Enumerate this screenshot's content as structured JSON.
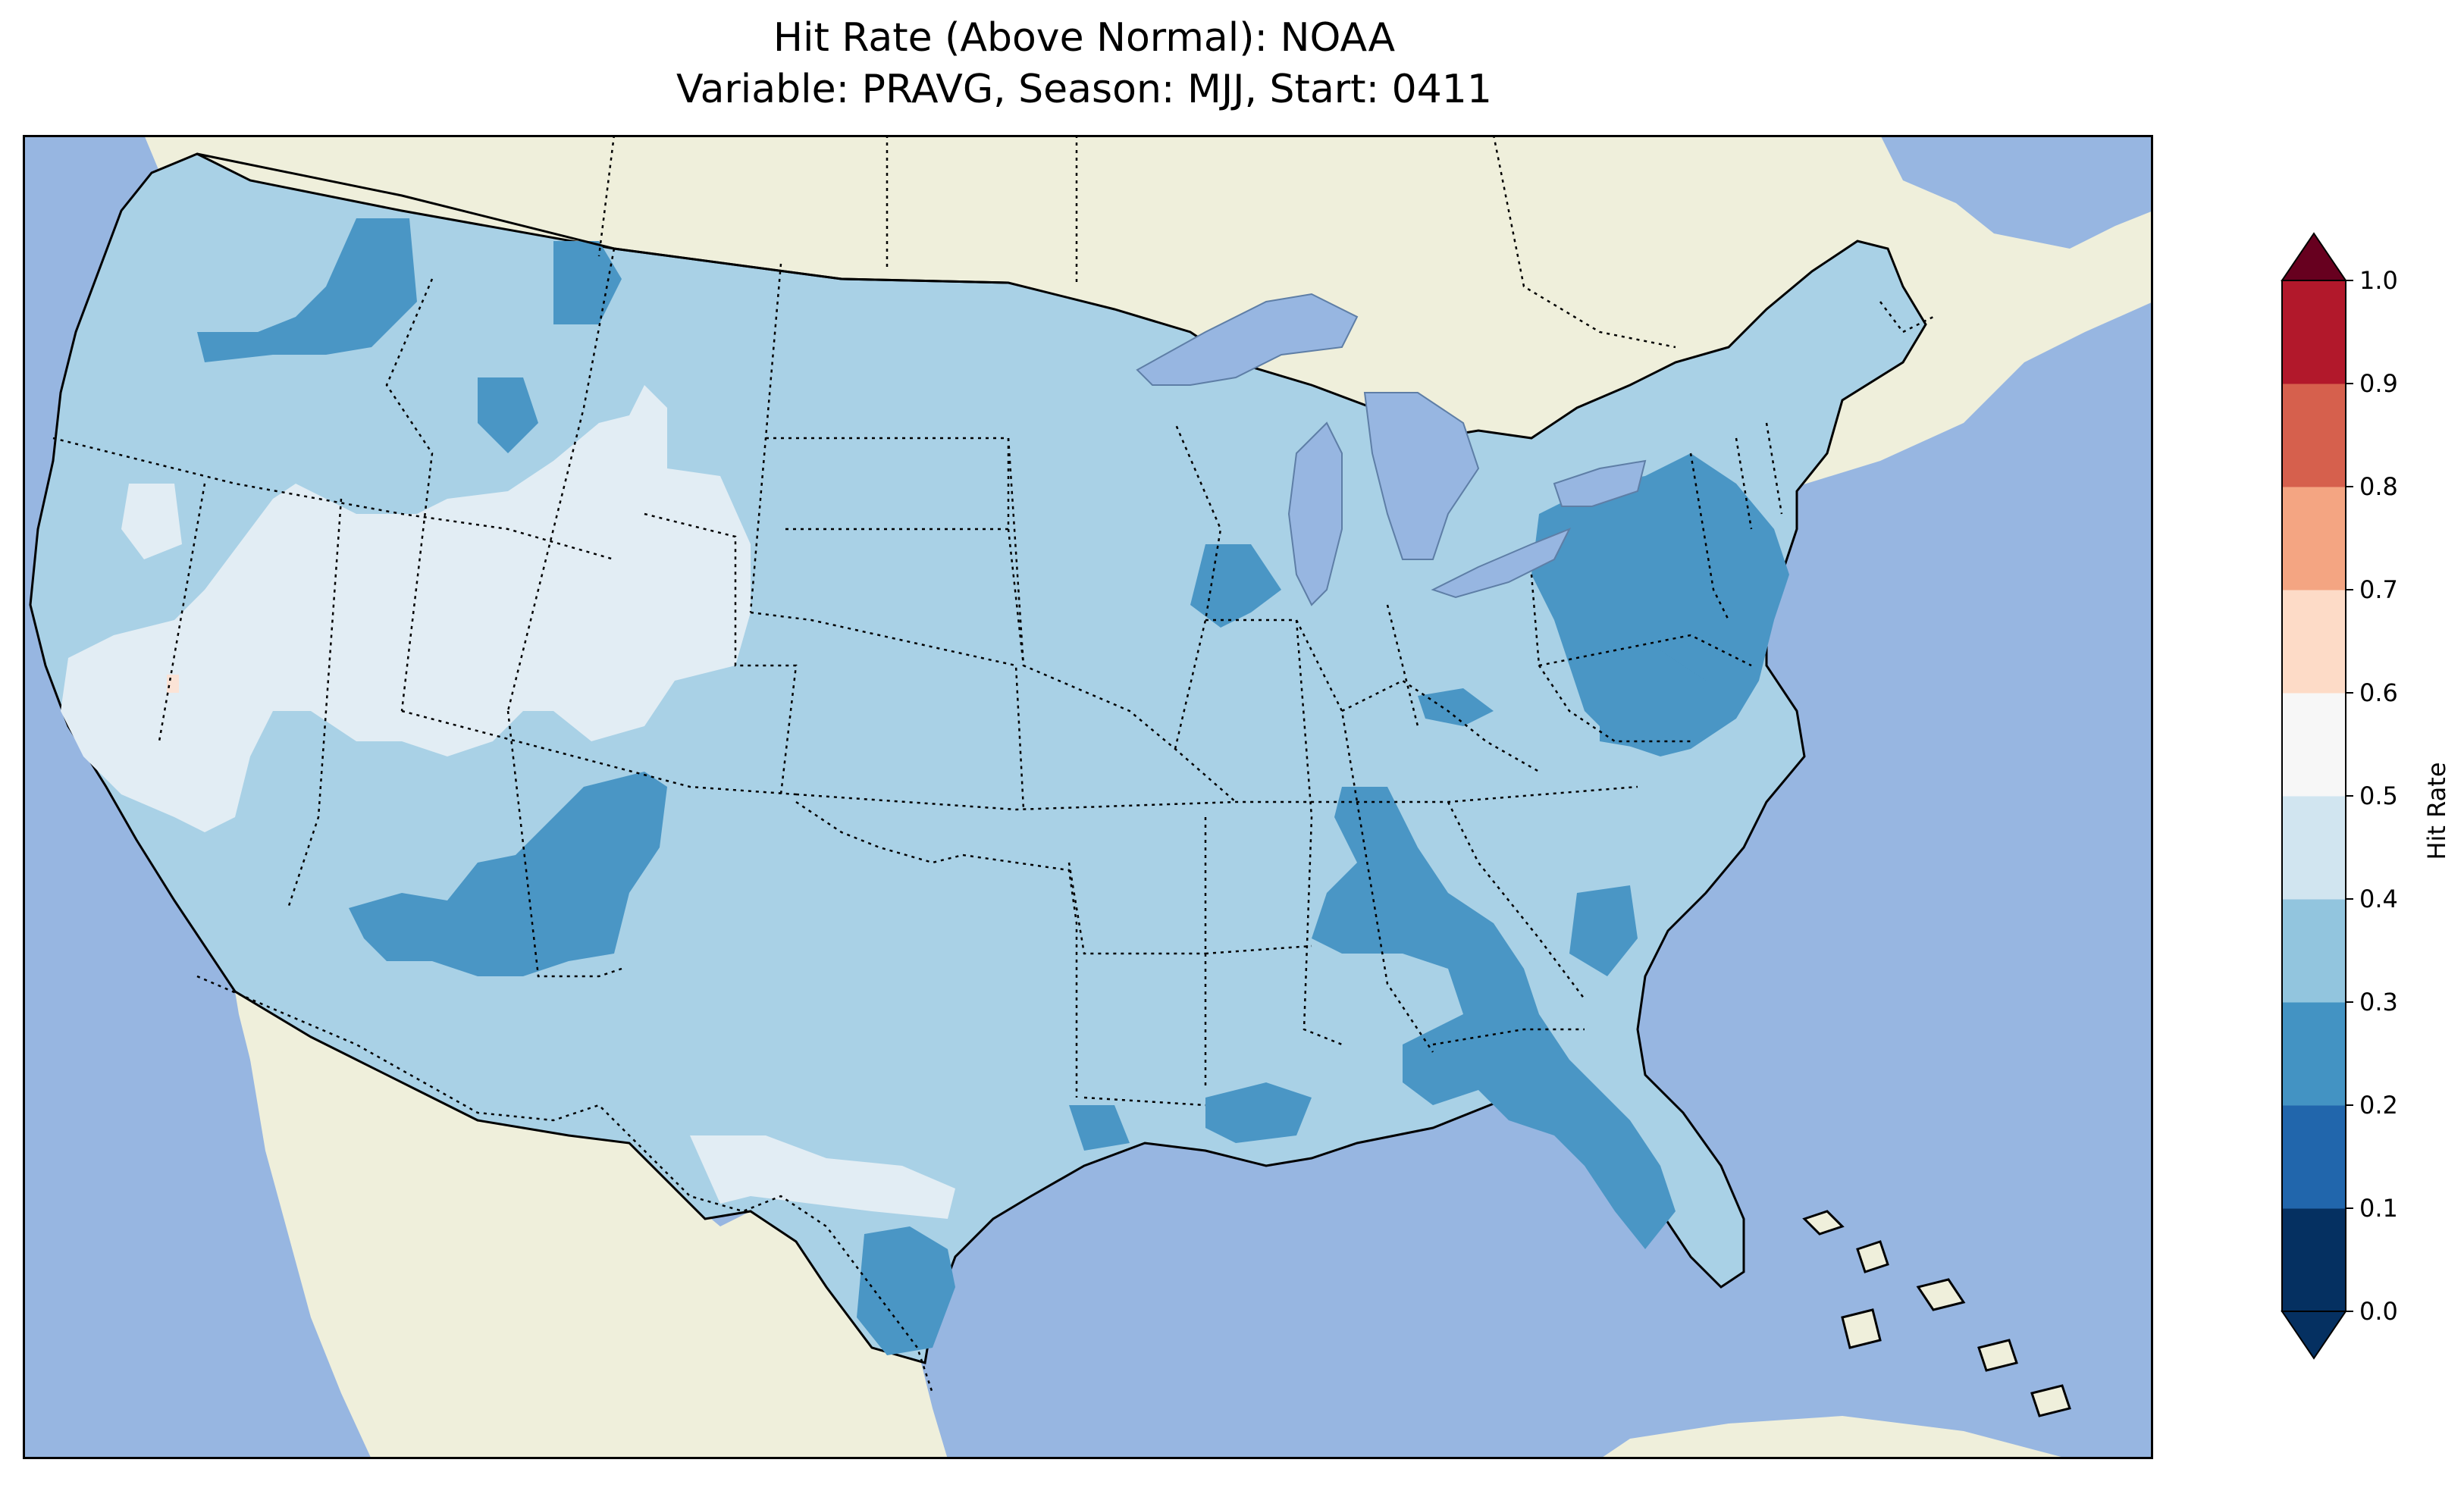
{
  "title": {
    "line1": "Hit Rate (Above Normal): NOAA",
    "line2": "Variable: PRAVG, Season: MJJ, Start: 0411"
  },
  "map": {
    "region": "Contiguous United States",
    "ocean_color": "#97b6e1",
    "land_color": "#efefdb",
    "coastline_color": "#000000",
    "border_style": "dotted"
  },
  "colorbar": {
    "label": "Hit Rate",
    "ticks": [
      "0.0",
      "0.1",
      "0.2",
      "0.3",
      "0.4",
      "0.5",
      "0.6",
      "0.7",
      "0.8",
      "0.9",
      "1.0"
    ],
    "colors": [
      "#053061",
      "#2166ac",
      "#4393c3",
      "#92c5de",
      "#d1e5f0",
      "#f7f7f7",
      "#fddbc7",
      "#f4a582",
      "#d6604d",
      "#b2182b",
      "#67001f"
    ],
    "extend": "both"
  },
  "chart_data": {
    "type": "heatmap",
    "title": "Hit Rate (Above Normal): NOAA\nVariable: PRAVG, Season: MJJ, Start: 0411",
    "colorbar_label": "Hit Rate",
    "value_range": [
      0.0,
      1.0
    ],
    "levels": [
      0.0,
      0.1,
      0.2,
      0.3,
      0.4,
      0.5,
      0.6,
      0.7,
      0.8,
      0.9,
      1.0
    ],
    "dominant_bin": "0.3-0.4",
    "regions": [
      {
        "area": "Most of CONUS",
        "bin": "0.3-0.4"
      },
      {
        "area": "Great Basin / Nevada, Utah, western Colorado, inland California",
        "bin": "0.4-0.5"
      },
      {
        "area": "South Texas (Rio Grande)",
        "bin": "0.4-0.5"
      },
      {
        "area": "Central California pocket",
        "bin": "0.5-0.6"
      },
      {
        "area": "Oregon / Washington interior",
        "bin": "0.2-0.3"
      },
      {
        "area": "Arizona / New Mexico",
        "bin": "0.2-0.3"
      },
      {
        "area": "Pennsylvania / New York / Mid-Atlantic",
        "bin": "0.2-0.3"
      },
      {
        "area": "Southeast (Alabama, Georgia, Carolinas, Florida)",
        "bin": "0.2-0.3"
      },
      {
        "area": "Gulf coast (Louisiana, South Texas coast)",
        "bin": "0.2-0.3"
      }
    ]
  }
}
